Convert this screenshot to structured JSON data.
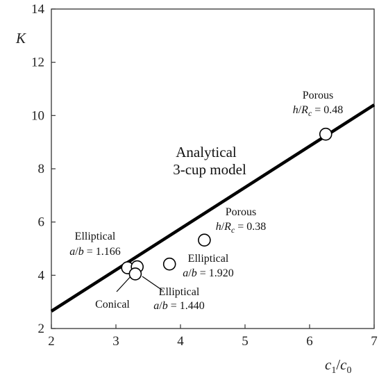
{
  "chart_data": {
    "type": "scatter",
    "title": "",
    "xlim": [
      2,
      7
    ],
    "ylim": [
      2,
      14
    ],
    "x_ticks": [
      2,
      3,
      4,
      5,
      6,
      7
    ],
    "y_ticks": [
      2,
      4,
      6,
      8,
      10,
      12,
      14
    ],
    "grid": false,
    "xlabel": {
      "main": "c",
      "sub1": "1",
      "slash": "/",
      "main2": "c",
      "sub2": "0"
    },
    "ylabel": "K",
    "line": {
      "name": "Analytical 3-cup model",
      "points": [
        [
          2,
          2.65
        ],
        [
          7,
          10.4
        ]
      ]
    },
    "points": [
      {
        "x": 6.25,
        "y": 9.3
      },
      {
        "x": 4.37,
        "y": 5.32
      },
      {
        "x": 3.83,
        "y": 4.42
      },
      {
        "x": 3.18,
        "y": 4.28
      },
      {
        "x": 3.33,
        "y": 4.32
      },
      {
        "x": 3.3,
        "y": 4.05
      }
    ],
    "annotations": {
      "model_line1": "Analytical",
      "model_line2": "3-cup model",
      "porous_048_title": "Porous",
      "porous_048_h": "h",
      "porous_048_R": "R",
      "porous_048_c": "c",
      "porous_048_value": " = 0.48",
      "porous_038_title": "Porous",
      "porous_038_h": "h",
      "porous_038_R": "R",
      "porous_038_c": "c",
      "porous_038_value": " = 0.38",
      "ell_1920_title": "Elliptical",
      "ell_1920_ab": "a",
      "ell_1920_b": "b",
      "ell_1920_value": " = 1.920",
      "ell_1166_title": "Elliptical",
      "ell_1166_ab": "a",
      "ell_1166_b": "b",
      "ell_1166_value": " = 1.166",
      "ell_1440_title": "Elliptical",
      "ell_1440_ab": "a",
      "ell_1440_b": "b",
      "ell_1440_value": " = 1.440",
      "conical": "Conical"
    }
  }
}
